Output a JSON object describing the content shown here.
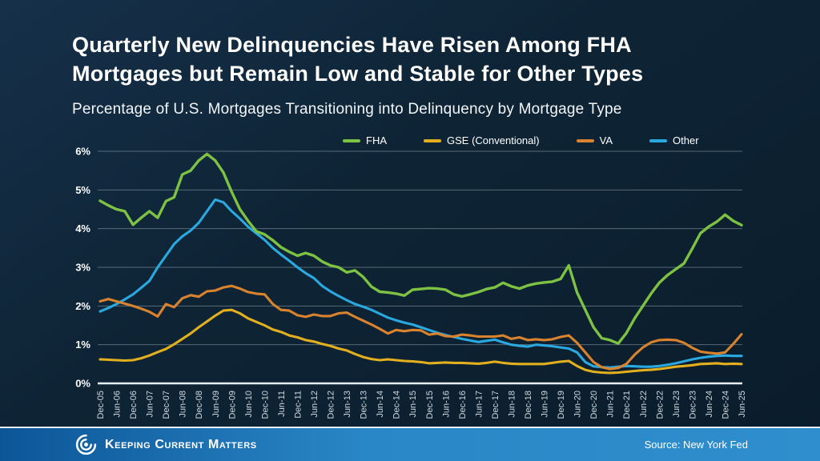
{
  "header": {
    "title_line1": "Quarterly New Delinquencies Have Risen Among FHA",
    "title_line2": "Mortgages but Remain Low and Stable for Other Types",
    "subtitle": "Percentage of U.S. Mortgages Transitioning into Delinquency by Mortgage Type"
  },
  "footer": {
    "brand": "Keeping Current Matters",
    "logo_icon": "spiral-logo-icon",
    "source": "Source: New York Fed"
  },
  "colors": {
    "background": "#0e2435",
    "fha": "#7dc242",
    "gse": "#e2b01f",
    "va": "#d9832f",
    "other": "#2aa9e0",
    "grid": "#9db0ba",
    "axis_line": "#e8eef2",
    "y_tick_text": "#ffffff",
    "x_tick_text": "#cfd9df",
    "footer_gradient_start": "#0c5697",
    "footer_gradient_end": "#2f8ecd"
  },
  "chart_data": {
    "type": "line",
    "title": "Percentage of U.S. Mortgages Transitioning into Delinquency by Mortgage Type",
    "xlabel": "",
    "ylabel": "",
    "ylim": [
      0,
      6
    ],
    "grid": true,
    "legend_position": "top",
    "frequency": "quarterly",
    "points_per_tick": 2,
    "y_tick_labels": [
      "0%",
      "1%",
      "2%",
      "3%",
      "4%",
      "5%",
      "6%"
    ],
    "x_tick_labels": [
      "Dec-05",
      "Jun-06",
      "Dec-06",
      "Jun-07",
      "Dec-07",
      "Jun-08",
      "Dec-08",
      "Jun-09",
      "Dec-09",
      "Jun-10",
      "Dec-10",
      "Jun-11",
      "Dec-11",
      "Jun-12",
      "Dec-12",
      "Jun-13",
      "Dec-13",
      "Jun-14",
      "Dec-14",
      "Jun-15",
      "Dec-15",
      "Jun-16",
      "Dec-16",
      "Jun-17",
      "Dec-17",
      "Jun-18",
      "Dec-18",
      "Jun-19",
      "Dec-19",
      "Jun-20",
      "Dec-20",
      "Jun-21",
      "Dec-21",
      "Jun-22",
      "Dec-22",
      "Jun-23",
      "Dec-23",
      "Jun-24",
      "Dec-24",
      "Jun-25"
    ],
    "series": [
      {
        "name": "FHA",
        "color": "#7dc242",
        "values": [
          4.72,
          4.6,
          4.5,
          4.45,
          4.1,
          4.28,
          4.45,
          4.28,
          4.71,
          4.81,
          5.4,
          5.5,
          5.76,
          5.93,
          5.76,
          5.45,
          4.95,
          4.5,
          4.2,
          3.93,
          3.85,
          3.7,
          3.52,
          3.4,
          3.3,
          3.37,
          3.3,
          3.15,
          3.05,
          3.0,
          2.87,
          2.92,
          2.75,
          2.5,
          2.37,
          2.35,
          2.32,
          2.27,
          2.42,
          2.44,
          2.46,
          2.45,
          2.42,
          2.3,
          2.25,
          2.3,
          2.36,
          2.44,
          2.48,
          2.6,
          2.51,
          2.45,
          2.53,
          2.58,
          2.61,
          2.63,
          2.7,
          3.05,
          2.35,
          1.9,
          1.45,
          1.17,
          1.12,
          1.03,
          1.3,
          1.68,
          2.0,
          2.32,
          2.6,
          2.8,
          2.95,
          3.1,
          3.48,
          3.88,
          4.05,
          4.18,
          4.36,
          4.2,
          4.09
        ]
      },
      {
        "name": "GSE (Conventional)",
        "color": "#e2b01f",
        "values": [
          0.62,
          0.61,
          0.6,
          0.59,
          0.6,
          0.65,
          0.72,
          0.81,
          0.89,
          1.01,
          1.15,
          1.29,
          1.45,
          1.6,
          1.75,
          1.88,
          1.9,
          1.81,
          1.68,
          1.59,
          1.5,
          1.39,
          1.33,
          1.24,
          1.19,
          1.12,
          1.08,
          1.02,
          0.97,
          0.9,
          0.85,
          0.76,
          0.68,
          0.63,
          0.6,
          0.62,
          0.6,
          0.58,
          0.57,
          0.55,
          0.52,
          0.53,
          0.54,
          0.53,
          0.53,
          0.52,
          0.51,
          0.53,
          0.56,
          0.53,
          0.51,
          0.5,
          0.5,
          0.5,
          0.5,
          0.53,
          0.56,
          0.58,
          0.45,
          0.35,
          0.3,
          0.28,
          0.27,
          0.28,
          0.3,
          0.32,
          0.34,
          0.35,
          0.37,
          0.4,
          0.43,
          0.45,
          0.47,
          0.5,
          0.51,
          0.52,
          0.5,
          0.51,
          0.5
        ]
      },
      {
        "name": "VA",
        "color": "#d9832f",
        "values": [
          2.12,
          2.18,
          2.12,
          2.06,
          2.0,
          1.93,
          1.85,
          1.73,
          2.05,
          1.97,
          2.2,
          2.28,
          2.24,
          2.38,
          2.4,
          2.48,
          2.52,
          2.45,
          2.36,
          2.32,
          2.3,
          2.05,
          1.9,
          1.88,
          1.76,
          1.72,
          1.78,
          1.74,
          1.74,
          1.81,
          1.83,
          1.72,
          1.62,
          1.52,
          1.41,
          1.29,
          1.38,
          1.35,
          1.38,
          1.37,
          1.26,
          1.29,
          1.22,
          1.21,
          1.26,
          1.24,
          1.21,
          1.21,
          1.21,
          1.24,
          1.15,
          1.19,
          1.12,
          1.14,
          1.12,
          1.14,
          1.2,
          1.24,
          1.05,
          0.8,
          0.55,
          0.42,
          0.37,
          0.4,
          0.5,
          0.74,
          0.93,
          1.06,
          1.12,
          1.13,
          1.12,
          1.05,
          0.92,
          0.82,
          0.79,
          0.77,
          0.8,
          1.02,
          1.27
        ]
      },
      {
        "name": "Other",
        "color": "#2aa9e0",
        "values": [
          1.86,
          1.95,
          2.05,
          2.17,
          2.3,
          2.47,
          2.65,
          3.0,
          3.3,
          3.6,
          3.8,
          3.95,
          4.15,
          4.45,
          4.75,
          4.68,
          4.45,
          4.26,
          4.05,
          3.88,
          3.71,
          3.5,
          3.33,
          3.17,
          3.0,
          2.85,
          2.72,
          2.52,
          2.38,
          2.26,
          2.15,
          2.05,
          1.98,
          1.9,
          1.8,
          1.7,
          1.63,
          1.57,
          1.52,
          1.45,
          1.38,
          1.31,
          1.25,
          1.2,
          1.15,
          1.11,
          1.07,
          1.1,
          1.13,
          1.06,
          1.0,
          0.97,
          0.95,
          1.0,
          0.98,
          0.96,
          0.93,
          0.9,
          0.8,
          0.55,
          0.44,
          0.42,
          0.41,
          0.43,
          0.45,
          0.44,
          0.43,
          0.43,
          0.45,
          0.48,
          0.52,
          0.57,
          0.62,
          0.66,
          0.69,
          0.71,
          0.72,
          0.71,
          0.71
        ]
      }
    ]
  }
}
